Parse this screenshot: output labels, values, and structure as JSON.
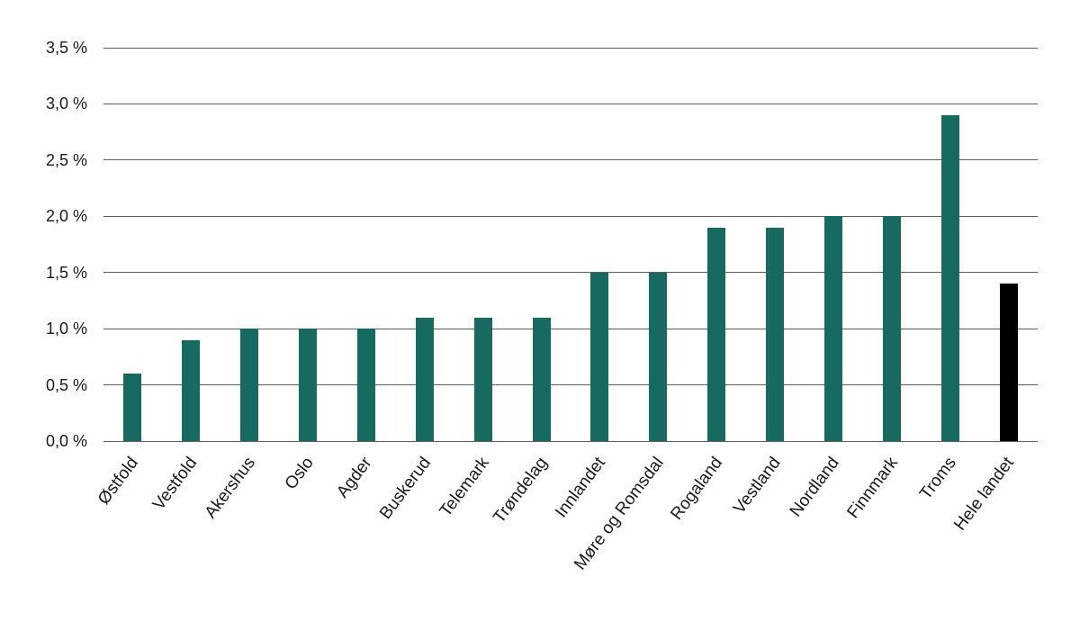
{
  "chart_data": {
    "type": "bar",
    "title": "",
    "categories": [
      "Østfold",
      "Vestfold",
      "Akershus",
      "Oslo",
      "Agder",
      "Buskerud",
      "Telemark",
      "Trøndelag",
      "Innlandet",
      "Møre og Romsdal",
      "Rogaland",
      "Vestland",
      "Nordland",
      "Finnmark",
      "Troms",
      "Hele landet"
    ],
    "values": [
      0.6,
      0.9,
      1.0,
      1.0,
      1.0,
      1.1,
      1.1,
      1.1,
      1.5,
      1.5,
      1.9,
      1.9,
      2.0,
      2.0,
      2.9,
      1.4
    ],
    "unit": "%",
    "y_tick_labels": [
      "0,0 %",
      "0,5 %",
      "1,0 %",
      "1,5 %",
      "2,0 %",
      "2,5 %",
      "3,0 %",
      "3,5 %"
    ],
    "ylim": [
      0,
      3.5
    ],
    "y_step": 0.5,
    "xlabel": "",
    "ylabel": "",
    "grid": "horizontal",
    "legend": "none",
    "x_label_rotation_deg": -53,
    "highlight_category": "Hele landet",
    "colors": {
      "bar": "#166A60",
      "bar_highlight": "#000000",
      "gridline": "#5F5F5F",
      "axis_text": "#1A1A1A",
      "background": "#FFFFFF"
    }
  }
}
